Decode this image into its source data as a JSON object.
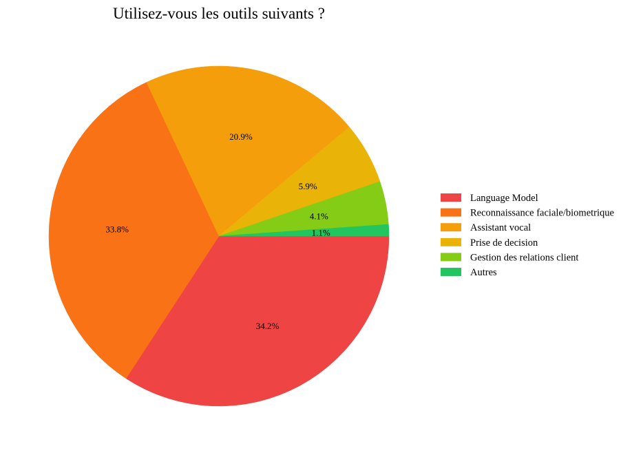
{
  "chart_data": {
    "type": "pie",
    "title": "Utilisez-vous les outils suivants ?",
    "legend_position": "right",
    "slices": [
      {
        "label": "Language Model",
        "value": 34.2,
        "display": "34.2%",
        "color": "#ef4444"
      },
      {
        "label": "Reconnaissance faciale/biometrique",
        "value": 33.8,
        "display": "33.8%",
        "color": "#f97316"
      },
      {
        "label": "Assistant vocal",
        "value": 20.9,
        "display": "20.9%",
        "color": "#f59e0b"
      },
      {
        "label": "Prise de decision",
        "value": 5.9,
        "display": "5.9%",
        "color": "#eab308"
      },
      {
        "label": "Gestion des relations client",
        "value": 4.1,
        "display": "4.1%",
        "color": "#84cc16"
      },
      {
        "label": "Autres",
        "value": 1.1,
        "display": "1.1%",
        "color": "#22c55e"
      }
    ]
  }
}
